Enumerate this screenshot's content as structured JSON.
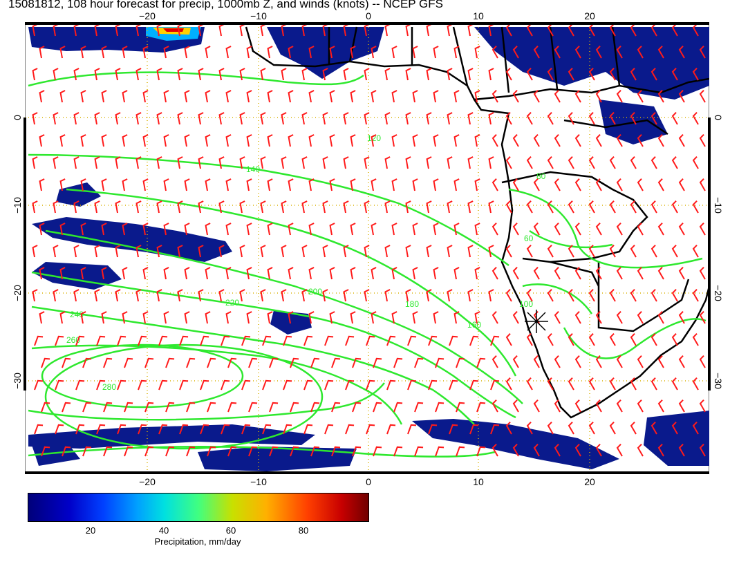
{
  "title": "15081812, 108 hour forecast for precip, 1000mb Z, and winds (knots) -- NCEP GFS",
  "map": {
    "lon_ticks": [
      "−20",
      "−10",
      "0",
      "10",
      "20"
    ],
    "lat_ticks": [
      "0",
      "−10",
      "−20",
      "−30"
    ],
    "contour_labels": [
      "120",
      "140",
      "160",
      "180",
      "200",
      "220",
      "240",
      "260",
      "280",
      "100",
      "80",
      "60"
    ],
    "marker": "cross-star"
  },
  "colorbar": {
    "ticks": [
      "20",
      "40",
      "60",
      "80"
    ],
    "label": "Precipitation, mm/day"
  },
  "colors": {
    "contour": "#2ee82e",
    "barb": "#ff1a1a",
    "precip": "#0a1a8c",
    "grid": "#d8b000",
    "land_border": "#000000"
  }
}
